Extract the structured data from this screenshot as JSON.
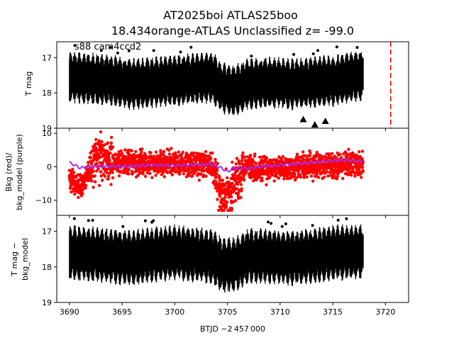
{
  "figure": {
    "title_line1": "AT2025boi  ATLAS25boo",
    "title_line2": "18.434orange-ATLAS Unclassified z= -99.0",
    "annotation": "s88 cam4ccd2",
    "xlabel": "BTJD −2 457 000",
    "colors": {
      "data": "#000000",
      "bkg": "#ff0000",
      "bkg_model": "#9b30ff",
      "marker_line": "#ff0000"
    }
  },
  "chart_data": [
    {
      "type": "scatter",
      "panel": "top",
      "ylabel": "T mag",
      "ylim": [
        19,
        16.55
      ],
      "xlim": [
        3688.8,
        3722.2
      ],
      "yticks": [
        "17",
        "18",
        "19"
      ],
      "series": [
        {
          "values_desc": "",
          "x_range": [
            3690.0,
            3717.9
          ],
          "center": [
            [
              3690.0,
              17.55
            ],
            [
              3692.0,
              17.6
            ],
            [
              3694.0,
              17.65
            ],
            [
              3696.0,
              17.75
            ],
            [
              3698.0,
              17.7
            ],
            [
              3700.0,
              17.65
            ],
            [
              3702.0,
              17.6
            ],
            [
              3703.5,
              17.55
            ],
            [
              3704.5,
              17.85
            ],
            [
              3705.5,
              17.95
            ],
            [
              3707.0,
              17.75
            ],
            [
              3709.0,
              17.7
            ],
            [
              3711.0,
              17.75
            ],
            [
              3713.0,
              17.7
            ],
            [
              3715.0,
              17.65
            ],
            [
              3717.0,
              17.55
            ],
            [
              3717.9,
              17.5
            ]
          ],
          "half_width": 0.75
        }
      ],
      "triangles": [
        [
          3712.2,
          18.75
        ],
        [
          3713.3,
          18.9
        ],
        [
          3714.3,
          18.8
        ]
      ],
      "vline_x": 3720.5
    },
    {
      "type": "scatter",
      "panel": "middle",
      "ylabel_line1": "Bkg (red)/",
      "ylabel_line2": "bkg_model (purple)",
      "ylim": [
        -14.5,
        11.5
      ],
      "xlim": [
        3688.8,
        3722.2
      ],
      "yticks": [
        "10",
        "0",
        "−10"
      ],
      "ytick_values": [
        10,
        0,
        -10
      ],
      "bkg_center": [
        [
          3690.0,
          -3.0
        ],
        [
          3690.5,
          -5.0
        ],
        [
          3691.0,
          -6.0
        ],
        [
          3691.5,
          -4.0
        ],
        [
          3692.0,
          0.5
        ],
        [
          3692.5,
          2.5
        ],
        [
          3693.0,
          3.5
        ],
        [
          3693.5,
          2.5
        ],
        [
          3694.0,
          1.5
        ],
        [
          3696.0,
          1.0
        ],
        [
          3698.0,
          1.2
        ],
        [
          3700.0,
          1.0
        ],
        [
          3702.0,
          0.8
        ],
        [
          3703.5,
          0.5
        ],
        [
          3704.0,
          -3.0
        ],
        [
          3704.3,
          -9.0
        ],
        [
          3705.0,
          -8.0
        ],
        [
          3705.5,
          -6.0
        ],
        [
          3706.0,
          -3.0
        ],
        [
          3706.8,
          1.0
        ],
        [
          3707.5,
          -0.5
        ],
        [
          3709.0,
          -0.8
        ],
        [
          3711.0,
          0.0
        ],
        [
          3713.0,
          0.3
        ],
        [
          3715.0,
          0.5
        ],
        [
          3717.0,
          0.8
        ],
        [
          3717.9,
          1.0
        ]
      ],
      "bkg_spread": 3.0,
      "model": [
        [
          3690.0,
          1.2
        ],
        [
          3690.5,
          0.5
        ],
        [
          3691.0,
          -0.3
        ],
        [
          3691.5,
          -0.2
        ],
        [
          3692.0,
          0.0
        ],
        [
          3694.0,
          0.1
        ],
        [
          3696.0,
          0.2
        ],
        [
          3698.0,
          0.5
        ],
        [
          3700.0,
          0.4
        ],
        [
          3702.0,
          0.6
        ],
        [
          3703.5,
          0.8
        ],
        [
          3704.0,
          0.2
        ],
        [
          3704.5,
          -0.5
        ],
        [
          3705.0,
          -1.5
        ],
        [
          3705.5,
          -0.5
        ],
        [
          3706.0,
          -0.3
        ],
        [
          3707.0,
          -0.5
        ],
        [
          3708.0,
          0.0
        ],
        [
          3710.0,
          0.5
        ],
        [
          3712.0,
          1.0
        ],
        [
          3714.0,
          1.5
        ],
        [
          3716.0,
          2.0
        ],
        [
          3717.0,
          1.8
        ],
        [
          3717.9,
          1.6
        ]
      ]
    },
    {
      "type": "scatter",
      "panel": "bottom",
      "ylabel_line1": "T mag −",
      "ylabel_line2": "bkg_model",
      "ylim": [
        19,
        16.55
      ],
      "xlim": [
        3688.8,
        3722.2
      ],
      "yticks": [
        "17",
        "18",
        "19"
      ],
      "xticks": [
        "3690",
        "3695",
        "3700",
        "3705",
        "3710",
        "3715",
        "3720"
      ],
      "xtick_values": [
        3690,
        3695,
        3700,
        3705,
        3710,
        3715,
        3720
      ],
      "center": [
        [
          3690.0,
          17.6
        ],
        [
          3692.0,
          17.65
        ],
        [
          3694.0,
          17.7
        ],
        [
          3696.0,
          17.75
        ],
        [
          3698.0,
          17.65
        ],
        [
          3700.0,
          17.6
        ],
        [
          3702.0,
          17.65
        ],
        [
          3703.5,
          17.7
        ],
        [
          3704.5,
          17.95
        ],
        [
          3705.5,
          17.95
        ],
        [
          3707.0,
          17.7
        ],
        [
          3709.0,
          17.7
        ],
        [
          3711.0,
          17.75
        ],
        [
          3713.0,
          17.7
        ],
        [
          3715.0,
          17.6
        ],
        [
          3717.0,
          17.6
        ],
        [
          3717.9,
          17.55
        ]
      ],
      "half_width": 0.8
    }
  ]
}
